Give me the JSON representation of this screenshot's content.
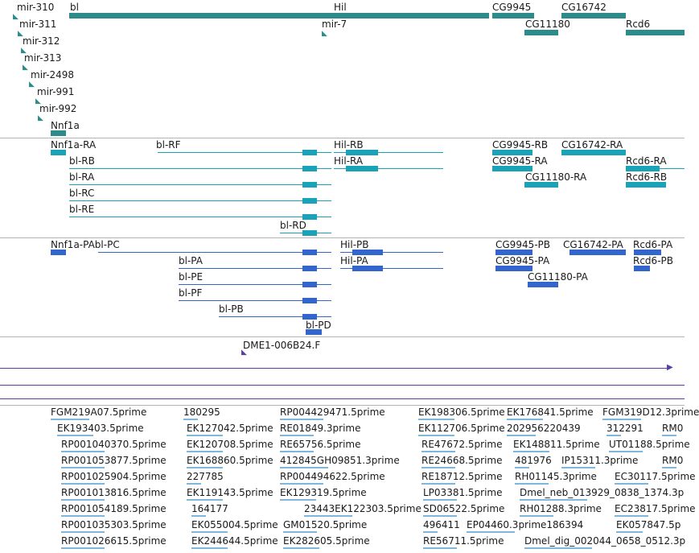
{
  "colors": {
    "gene": "#2e8b8b",
    "transcript_a": "#1aa3b8",
    "transcript_b": "#3366cc",
    "line": "#5a3ea6",
    "est": "#7fb6dc",
    "separator": "#b4b4b4",
    "text": "#1a1a1a"
  },
  "tracks": {
    "genes": {
      "labels": [
        "mir-310",
        "bl",
        "Hil",
        "CG9945",
        "CG16742",
        "mir-311",
        "mir-7",
        "CG11180",
        "Rcd6",
        "mir-312",
        "mir-313",
        "mir-2498",
        "mir-991",
        "mir-992",
        "Nnf1a"
      ]
    },
    "transcripts_a": {
      "labels": [
        "Nnf1a-RA",
        "bl-RF",
        "Hil-RB",
        "CG9945-RB",
        "CG16742-RA",
        "bl-RB",
        "Hil-RA",
        "CG9945-RA",
        "Rcd6-RA",
        "bl-RA",
        "CG11180-RA",
        "Rcd6-RB",
        "bl-RC",
        "bl-RE",
        "bl-RD"
      ]
    },
    "transcripts_b": {
      "labels": [
        "Nnf1a-PAbl-PC",
        "Hil-PB",
        "CG9945-PB",
        "CG16742-PA",
        "Rcd6-PA",
        "bl-PA",
        "Hil-PA",
        "CG9945-PA",
        "Rcd6-PB",
        "bl-PE",
        "CG11180-PA",
        "bl-PF",
        "bl-PB",
        "bl-PD"
      ]
    },
    "clones": {
      "labels": [
        "DME1-006B24.F"
      ]
    },
    "ests": {
      "labels": [
        "FGM219A07.5prime",
        "180295",
        "RP004429471.5prime",
        "EK198306.5prime",
        "EK176841.5prime",
        "FGM319D12.3prime",
        "EK193403.5prime",
        "EK127042.5prime",
        "RE01849.3prime",
        "EK112706.5prime",
        "202956220439",
        "312291",
        "RM0",
        "RP001040370.5prime",
        "EK120708.5prime",
        "RE65756.5prime",
        "RE47672.5prime",
        "EK148811.5prime",
        "UT01188.5prime",
        "RP001053877.5prime",
        "EK168860.5prime",
        "412845GH09851.3prime",
        "RE24668.5prime",
        "481976",
        "IP15311.3prime",
        "RM0",
        "RP001025904.5prime",
        "227785",
        "RP004494622.5prime",
        "RE18712.5prime",
        "RH01145.3prime",
        "EC30117.5prime",
        "RP001013816.5prime",
        "EK119143.5prime",
        "EK129319.5prime",
        "LP03381.5prime",
        "Dmel_neb_013929_0838_1374.3p",
        "RP001054189.5prime",
        "164177",
        "23443EK122303.5prime",
        "SD06522.5prime",
        "RH01288.3prime",
        "EC23817.5prime",
        "RP001035303.5prime",
        "EK055004.5prime",
        "GM01520.5prime",
        "496411",
        "EP04460.3prime186394",
        "EK057847.5p",
        "RP001026615.5prime",
        "EK244644.5prime",
        "EK282605.5prime",
        "RE56711.5prime",
        "Dmel_dig_002044_0658_0512.3p"
      ]
    }
  }
}
